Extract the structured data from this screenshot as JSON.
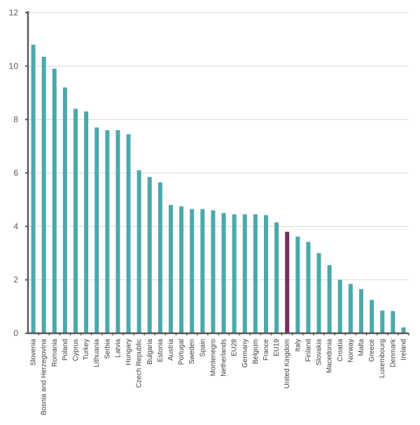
{
  "chart_data": {
    "type": "bar",
    "title": "",
    "xlabel": "",
    "ylabel": "",
    "ylim": [
      0,
      12
    ],
    "yticks": [
      0,
      2,
      4,
      6,
      8,
      10,
      12
    ],
    "grid": true,
    "legend": "none",
    "colors": {
      "default": "#4BA9AC",
      "highlight": "#7B2C5F",
      "axis": "#595959",
      "grid": "#D9D9D9"
    },
    "highlight_category": "United Kingdom",
    "categories": [
      "Slovenia",
      "Bosnia and Herzegovina",
      "Romania",
      "Poland",
      "Cyprus",
      "Turkey",
      "Lithuania",
      "Serbia",
      "Latvia",
      "Hungary",
      "Czech Republic",
      "Bulgaria",
      "Estonia",
      "Austria",
      "Portugal",
      "Sweden",
      "Spain",
      "Montenegro",
      "Netherlands",
      "EU28",
      "Germany",
      "Belgium",
      "France",
      "EU19",
      "United Kingdom",
      "Italy",
      "Finland",
      "Slovakia",
      "Macedonia",
      "Croatia",
      "Norway",
      "Malta",
      "Greece",
      "Luxembourg",
      "Denmark",
      "Ireland"
    ],
    "values": [
      10.8,
      10.35,
      9.9,
      9.2,
      8.4,
      8.3,
      7.7,
      7.6,
      7.6,
      7.45,
      6.1,
      5.85,
      5.65,
      4.8,
      4.75,
      4.65,
      4.65,
      4.6,
      4.5,
      4.45,
      4.45,
      4.45,
      4.42,
      4.15,
      3.8,
      3.62,
      3.42,
      3.0,
      2.55,
      2.0,
      1.85,
      1.65,
      1.25,
      0.85,
      0.83,
      0.22
    ]
  }
}
